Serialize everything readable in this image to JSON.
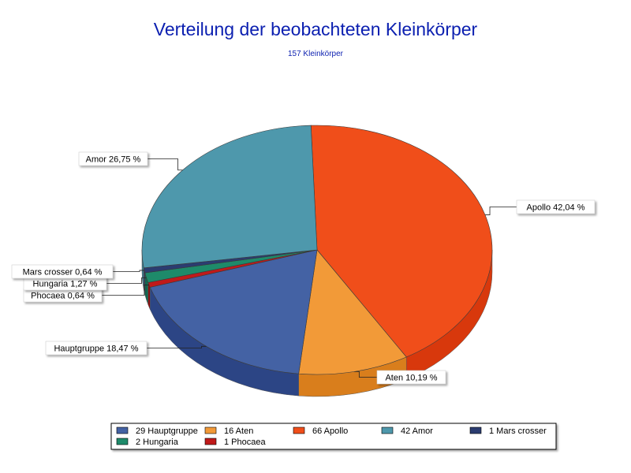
{
  "chart_data": {
    "type": "pie",
    "title": "Verteilung der beobachteten Kleinkörper",
    "subtitle": "157 Kleinkörper",
    "slices": [
      {
        "name": "Apollo",
        "count": 66,
        "percent_label": "42,04 %",
        "legend_label": "66 Apollo",
        "color": "#f04e1a",
        "dark": "#d8380c"
      },
      {
        "name": "Aten",
        "count": 16,
        "percent_label": "10,19 %",
        "legend_label": "16 Aten",
        "color": "#f29a38",
        "dark": "#d97e1c"
      },
      {
        "name": "Hauptgruppe",
        "count": 29,
        "percent_label": "18,47 %",
        "legend_label": "29 Hauptgruppe",
        "color": "#4462a4",
        "dark": "#2c4585"
      },
      {
        "name": "Phocaea",
        "count": 1,
        "percent_label": "0,64 %",
        "legend_label": "1 Phocaea",
        "color": "#c01a1a",
        "dark": "#8e1010"
      },
      {
        "name": "Hungaria",
        "count": 2,
        "percent_label": "1,27 %",
        "legend_label": "2 Hungaria",
        "color": "#1e8a6a",
        "dark": "#146650"
      },
      {
        "name": "Mars crosser",
        "count": 1,
        "percent_label": "0,64 %",
        "legend_label": "1 Mars crosser",
        "color": "#2b3c70",
        "dark": "#1c2850"
      },
      {
        "name": "Amor",
        "count": 42,
        "percent_label": "26,75 %",
        "legend_label": "42 Amor",
        "color": "#4e98ac",
        "dark": "#3a7a8c"
      }
    ],
    "legend_order": [
      "Hauptgruppe",
      "Aten",
      "Apollo",
      "Amor",
      "Mars crosser",
      "Hungaria",
      "Phocaea"
    ],
    "legend_placement": "bottom"
  }
}
